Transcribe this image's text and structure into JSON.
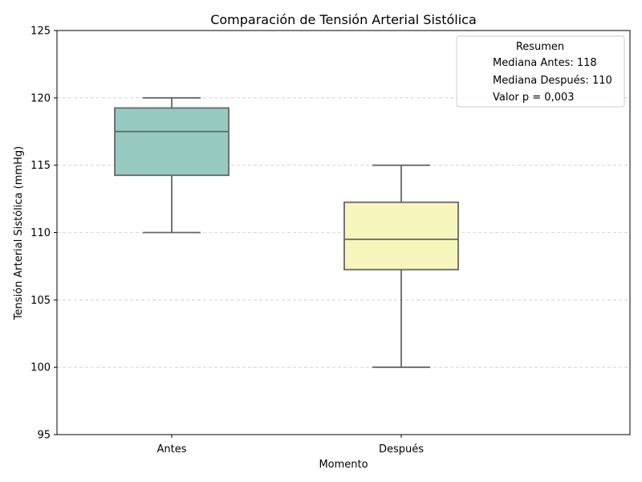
{
  "chart_data": {
    "type": "box",
    "title": "Comparación de Tensión Arterial Sistólica",
    "xlabel": "Momento",
    "ylabel": "Tensión Arterial Sistólica (mmHg)",
    "ylim": [
      95,
      125
    ],
    "yticks": [
      95,
      100,
      105,
      110,
      115,
      120,
      125
    ],
    "grid": "horizontal-dashed",
    "categories": [
      "Antes",
      "Después"
    ],
    "boxes": [
      {
        "category": "Antes",
        "whisker_low": 110,
        "q1": 114.25,
        "median": 117.5,
        "q3": 119.25,
        "whisker_high": 120,
        "color": "#96cac1"
      },
      {
        "category": "Después",
        "whisker_low": 100,
        "q1": 107.25,
        "median": 109.5,
        "q3": 112.25,
        "whisker_high": 115,
        "color": "#f6f6bc"
      }
    ],
    "legend": {
      "title": "Resumen",
      "placement": "top-right",
      "entries": [
        "Mediana Antes: 118",
        "Mediana Después: 110",
        "Valor p = 0,003"
      ]
    },
    "line_color": "#666666"
  }
}
